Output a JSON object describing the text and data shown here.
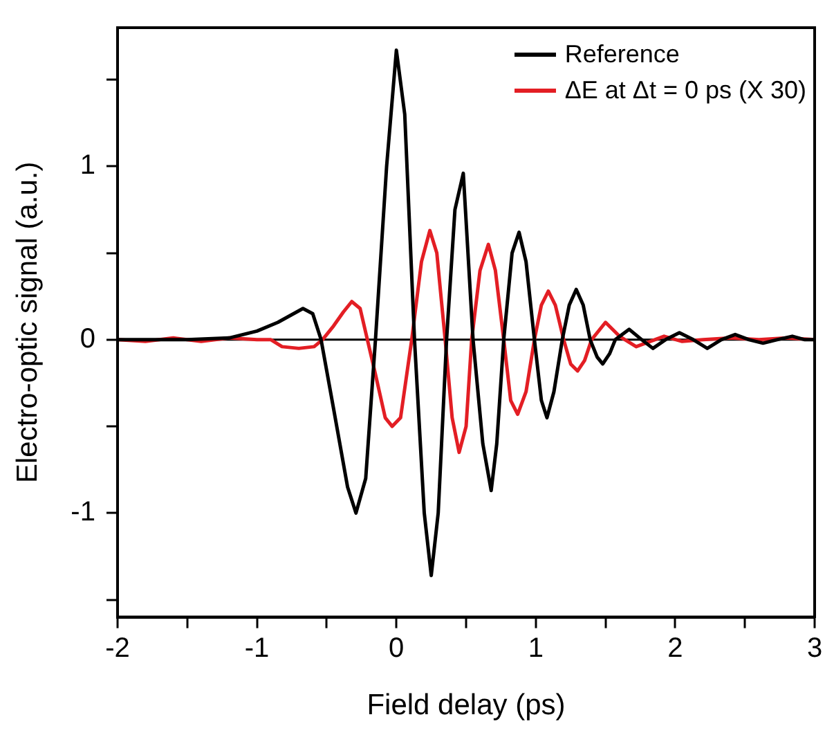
{
  "chart_data": {
    "type": "line",
    "xlabel": "Field delay (ps)",
    "ylabel": "Electro-optic signal (a.u.)",
    "xlim": [
      -2,
      3
    ],
    "xticks": [
      -2,
      {
        "value": -1.5,
        "label": null
      },
      -1,
      {
        "value": -0.5,
        "label": null
      },
      0,
      {
        "value": 0.5,
        "label": null
      },
      1,
      {
        "value": 1.5,
        "label": null
      },
      2,
      {
        "value": 2.5,
        "label": null
      },
      3
    ],
    "ylim": [
      -1.6,
      1.8
    ],
    "yticks": [
      {
        "value": -1.5,
        "label": null
      },
      -1,
      {
        "value": -0.5,
        "label": null
      },
      0,
      {
        "value": 0.5,
        "label": null
      },
      1,
      {
        "value": 1.5,
        "label": null
      }
    ],
    "grid": false,
    "legend": "top right",
    "marker": "none",
    "line_style": "solid",
    "ref_lines": [
      {
        "axis": "y",
        "value": 0,
        "color": "#000000"
      }
    ],
    "series": [
      {
        "name": "Reference",
        "color": "#000000",
        "x": [
          -2,
          -1.5,
          -1.2,
          -1.0,
          -0.85,
          -0.67,
          -0.6,
          -0.54,
          -0.45,
          -0.35,
          -0.29,
          -0.22,
          -0.15,
          -0.07,
          0.0,
          0.06,
          0.13,
          0.2,
          0.25,
          0.3,
          0.36,
          0.42,
          0.48,
          0.55,
          0.62,
          0.68,
          0.72,
          0.77,
          0.83,
          0.88,
          0.93,
          0.99,
          1.04,
          1.08,
          1.13,
          1.19,
          1.24,
          1.29,
          1.34,
          1.39,
          1.44,
          1.48,
          1.53,
          1.57,
          1.67,
          1.76,
          1.84,
          1.93,
          2.03,
          2.13,
          2.23,
          2.33,
          2.43,
          2.53,
          2.63,
          2.73,
          2.84,
          2.93,
          3.0
        ],
        "values": [
          0,
          0,
          0.01,
          0.05,
          0.1,
          0.18,
          0.15,
          0.0,
          -0.4,
          -0.85,
          -1.0,
          -0.8,
          0.0,
          1.0,
          1.67,
          1.3,
          0.0,
          -1.0,
          -1.36,
          -1.0,
          0.0,
          0.75,
          0.96,
          0.0,
          -0.6,
          -0.87,
          -0.6,
          0.0,
          0.5,
          0.62,
          0.45,
          0.0,
          -0.35,
          -0.45,
          -0.3,
          0.0,
          0.2,
          0.29,
          0.2,
          0.0,
          -0.1,
          -0.14,
          -0.08,
          0.0,
          0.06,
          0.0,
          -0.05,
          0.0,
          0.04,
          0.0,
          -0.05,
          0.0,
          0.03,
          0.0,
          -0.02,
          0.0,
          0.02,
          0.0,
          0.0
        ]
      },
      {
        "name": "ΔE at Δt = 0 ps (X 30)",
        "color": "#e31e24",
        "x": [
          -2,
          -1.8,
          -1.6,
          -1.4,
          -1.2,
          -1.0,
          -0.9,
          -0.82,
          -0.7,
          -0.59,
          -0.53,
          -0.45,
          -0.38,
          -0.32,
          -0.26,
          -0.15,
          -0.08,
          -0.03,
          0.03,
          0.11,
          0.18,
          0.24,
          0.29,
          0.35,
          0.4,
          0.45,
          0.5,
          0.54,
          0.6,
          0.66,
          0.71,
          0.77,
          0.82,
          0.87,
          0.93,
          0.99,
          1.04,
          1.09,
          1.14,
          1.2,
          1.25,
          1.3,
          1.35,
          1.4,
          1.5,
          1.6,
          1.72,
          1.82,
          1.92,
          2.05,
          2.2,
          2.4,
          2.6,
          2.8,
          3.0
        ],
        "values": [
          0,
          -0.01,
          0.01,
          -0.01,
          0.01,
          0,
          0,
          -0.04,
          -0.05,
          -0.04,
          0.0,
          0.08,
          0.16,
          0.22,
          0.18,
          -0.2,
          -0.45,
          -0.5,
          -0.45,
          0.0,
          0.45,
          0.63,
          0.5,
          0.0,
          -0.45,
          -0.65,
          -0.5,
          0.0,
          0.4,
          0.55,
          0.4,
          0.0,
          -0.35,
          -0.43,
          -0.3,
          0.0,
          0.2,
          0.28,
          0.2,
          0.0,
          -0.14,
          -0.18,
          -0.12,
          0.0,
          0.1,
          0.02,
          -0.04,
          -0.01,
          0.02,
          -0.01,
          0.0,
          0.01,
          0.0,
          0.01,
          0.0
        ]
      }
    ]
  }
}
